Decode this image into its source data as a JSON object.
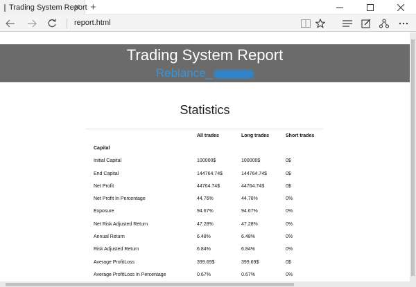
{
  "browser": {
    "tab_title": "Trading System Report",
    "tab_close_glyph": "✕",
    "new_tab_glyph": "+",
    "address": "report.html",
    "icons": [
      "back-icon",
      "forward-icon",
      "refresh-icon",
      "reading-view-icon",
      "favorite-star-icon",
      "hub-icon",
      "web-note-icon",
      "share-icon",
      "more-icon"
    ]
  },
  "report": {
    "title": "Trading System Report",
    "subtitle": "Reblance_"
  },
  "statistics": {
    "heading": "Statistics",
    "columns": [
      "",
      "All trades",
      "Long trades",
      "Short trades"
    ],
    "group_label": "Capital",
    "rows": [
      [
        "Initial Capital",
        "100000$",
        "100000$",
        "0$"
      ],
      [
        "End Capital",
        "144764.74$",
        "144764.74$",
        "0$"
      ],
      [
        "Net Profit",
        "44764.74$",
        "44764.74$",
        "0$"
      ],
      [
        "Net Profit In Percentage",
        "44.76%",
        "44.76%",
        "0%"
      ],
      [
        "Exposure",
        "94.67%",
        "94.67%",
        "0%"
      ],
      [
        "Net Risk Adjusted Return",
        "47.28%",
        "47.28%",
        "0%"
      ],
      [
        "Annual Return",
        "6.48%",
        "6.48%",
        "0%"
      ],
      [
        "Risk Adjusted Return",
        "6.84%",
        "6.84%",
        "0%"
      ],
      [
        "Average ProfitLoss",
        "399.69$",
        "399.69$",
        "0$"
      ],
      [
        "Average ProfitLoss In Percentage",
        "0.67%",
        "0.67%",
        "0%"
      ]
    ]
  }
}
